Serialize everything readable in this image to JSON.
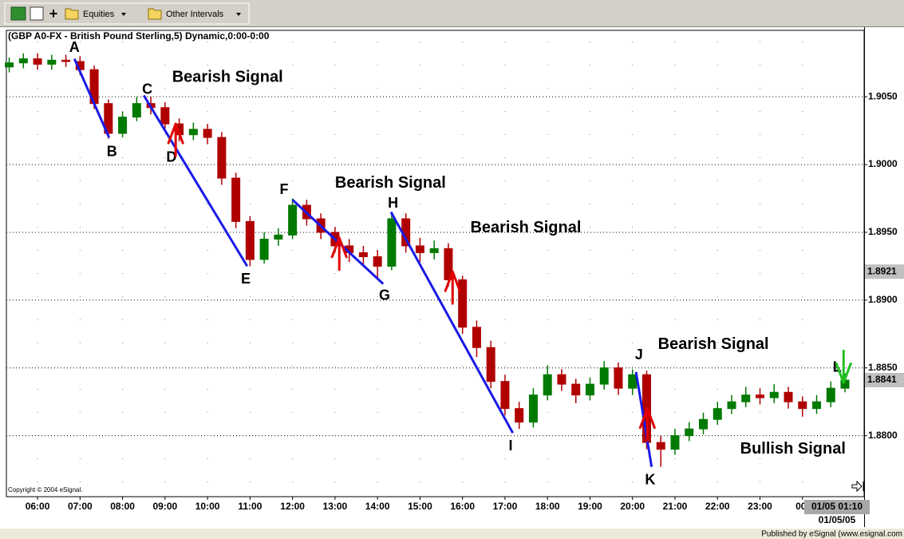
{
  "toolbar": {
    "items": [
      "Equities",
      "Other Intervals"
    ]
  },
  "footer": "Published by eSignal (www.esignal.com",
  "chart_data": {
    "type": "candlestick",
    "title": "(GBP A0-FX - British Pound Sterling,5) Dynamic,0:00-0:00",
    "copyright": "Copyright © 2004 eSignal.",
    "date_label": "01/05/05",
    "time_marker": "01/05 01:10",
    "grid": true,
    "up_color": "#007a00",
    "down_color": "#b00000",
    "xlim": [
      -44,
      1167
    ],
    "ylim": [
      1.8755,
      1.9099
    ],
    "xticks": [
      {
        "value": 0,
        "label": "06:00"
      },
      {
        "value": 60,
        "label": "07:00"
      },
      {
        "value": 120,
        "label": "08:00"
      },
      {
        "value": 180,
        "label": "09:00"
      },
      {
        "value": 240,
        "label": "10:00"
      },
      {
        "value": 300,
        "label": "11:00"
      },
      {
        "value": 360,
        "label": "12:00"
      },
      {
        "value": 420,
        "label": "13:00"
      },
      {
        "value": 480,
        "label": "14:00"
      },
      {
        "value": 540,
        "label": "15:00"
      },
      {
        "value": 600,
        "label": "16:00"
      },
      {
        "value": 660,
        "label": "17:00"
      },
      {
        "value": 720,
        "label": "18:00"
      },
      {
        "value": 780,
        "label": "19:00"
      },
      {
        "value": 840,
        "label": "20:00"
      },
      {
        "value": 900,
        "label": "21:00"
      },
      {
        "value": 960,
        "label": "22:00"
      },
      {
        "value": 1020,
        "label": "23:00"
      },
      {
        "value": 1080,
        "label": "00:"
      }
    ],
    "yticks": [
      {
        "value": 1.905,
        "label": "1.9050"
      },
      {
        "value": 1.9,
        "label": "1.9000"
      },
      {
        "value": 1.895,
        "label": "1.8950"
      },
      {
        "value": 1.89,
        "label": "1.8900"
      },
      {
        "value": 1.885,
        "label": "1.8850"
      },
      {
        "value": 1.88,
        "label": "1.8800"
      }
    ],
    "price_markers": [
      1.8921,
      1.8841
    ],
    "x": [
      -40,
      -20,
      0,
      20,
      40,
      60,
      80,
      100,
      120,
      140,
      160,
      180,
      200,
      220,
      240,
      260,
      280,
      300,
      320,
      340,
      360,
      380,
      400,
      420,
      440,
      460,
      480,
      500,
      520,
      540,
      560,
      580,
      600,
      620,
      640,
      660,
      680,
      700,
      720,
      740,
      760,
      780,
      800,
      820,
      840,
      860,
      880,
      900,
      920,
      940,
      960,
      980,
      1000,
      1020,
      1040,
      1060,
      1080,
      1100,
      1120,
      1140
    ],
    "open": [
      1.9072,
      1.9075,
      1.9078,
      1.9074,
      1.9077,
      1.9076,
      1.907,
      1.9045,
      1.9023,
      1.9035,
      1.9045,
      1.9042,
      1.903,
      1.9022,
      1.9026,
      1.902,
      1.899,
      1.8958,
      1.893,
      1.8945,
      1.8948,
      1.897,
      1.896,
      1.895,
      1.894,
      1.8935,
      1.8932,
      1.8925,
      1.896,
      1.894,
      1.8935,
      1.8938,
      1.8915,
      1.888,
      1.8865,
      1.884,
      1.882,
      1.881,
      1.883,
      1.8845,
      1.8838,
      1.883,
      1.8838,
      1.885,
      1.8835,
      1.8845,
      1.8795,
      1.879,
      1.88,
      1.8805,
      1.8812,
      1.882,
      1.8825,
      1.883,
      1.8828,
      1.8832,
      1.8825,
      1.882,
      1.8825,
      1.8835
    ],
    "high": [
      1.9079,
      1.9082,
      1.9082,
      1.9081,
      1.9081,
      1.908,
      1.9073,
      1.9048,
      1.9039,
      1.905,
      1.905,
      1.9046,
      1.9034,
      1.9031,
      1.903,
      1.9024,
      1.8994,
      1.8962,
      1.895,
      1.8953,
      1.8975,
      1.8974,
      1.8964,
      1.8954,
      1.8945,
      1.894,
      1.8937,
      1.8965,
      1.8964,
      1.8946,
      1.8944,
      1.8942,
      1.8918,
      1.8885,
      1.887,
      1.8845,
      1.8825,
      1.8835,
      1.8852,
      1.8849,
      1.8842,
      1.8843,
      1.8855,
      1.8854,
      1.8849,
      1.8848,
      1.88,
      1.8805,
      1.881,
      1.8817,
      1.8825,
      1.883,
      1.8836,
      1.8835,
      1.8838,
      1.8836,
      1.8829,
      1.883,
      1.884,
      1.8846
    ],
    "low": [
      1.9068,
      1.9071,
      1.907,
      1.907,
      1.9072,
      1.9066,
      1.9041,
      1.9019,
      1.902,
      1.9032,
      1.9037,
      1.9026,
      1.9017,
      1.9018,
      1.9015,
      1.8985,
      1.8953,
      1.8925,
      1.8927,
      1.894,
      1.8945,
      1.8955,
      1.8945,
      1.8935,
      1.8928,
      1.8926,
      1.8915,
      1.8922,
      1.8935,
      1.8928,
      1.893,
      1.891,
      1.8875,
      1.8858,
      1.8835,
      1.8815,
      1.8805,
      1.8806,
      1.8826,
      1.8833,
      1.8824,
      1.8826,
      1.8834,
      1.883,
      1.883,
      1.879,
      1.8777,
      1.8786,
      1.8796,
      1.8801,
      1.8808,
      1.8816,
      1.8821,
      1.8823,
      1.8824,
      1.882,
      1.8814,
      1.8816,
      1.8821,
      1.8832
    ],
    "close": [
      1.9075,
      1.9078,
      1.9074,
      1.9077,
      1.9076,
      1.907,
      1.9045,
      1.9023,
      1.9035,
      1.9045,
      1.9042,
      1.903,
      1.9022,
      1.9026,
      1.902,
      1.899,
      1.8958,
      1.893,
      1.8945,
      1.8948,
      1.897,
      1.896,
      1.895,
      1.894,
      1.8935,
      1.8932,
      1.8925,
      1.896,
      1.894,
      1.8935,
      1.8938,
      1.8915,
      1.888,
      1.8865,
      1.884,
      1.882,
      1.881,
      1.883,
      1.8845,
      1.8838,
      1.883,
      1.8838,
      1.885,
      1.8835,
      1.8845,
      1.8795,
      1.879,
      1.88,
      1.8805,
      1.8812,
      1.882,
      1.8825,
      1.883,
      1.8828,
      1.8832,
      1.8825,
      1.882,
      1.8825,
      1.8835,
      1.8841
    ],
    "trend_color": "#1a1ae6",
    "trend_lines": [
      {
        "x": [
          52,
          101
        ],
        "y": [
          1.9078,
          1.902
        ]
      },
      {
        "x": [
          150,
          296
        ],
        "y": [
          1.9051,
          1.8925
        ]
      },
      {
        "x": [
          360,
          488
        ],
        "y": [
          1.8974,
          1.8912
        ]
      },
      {
        "x": [
          499,
          671
        ],
        "y": [
          1.8965,
          1.8802
        ]
      },
      {
        "x": [
          845,
          867
        ],
        "y": [
          1.8847,
          1.8777
        ]
      }
    ],
    "labels": [
      {
        "text": "A",
        "x": 52,
        "y": 1.9086
      },
      {
        "text": "B",
        "x": 105,
        "y": 1.9009
      },
      {
        "text": "C",
        "x": 155,
        "y": 1.9055
      },
      {
        "text": "D",
        "x": 189,
        "y": 1.9005
      },
      {
        "text": "E",
        "x": 294,
        "y": 1.8915
      },
      {
        "text": "F",
        "x": 348,
        "y": 1.8981
      },
      {
        "text": "G",
        "x": 490,
        "y": 1.8903
      },
      {
        "text": "H",
        "x": 502,
        "y": 1.8971
      },
      {
        "text": "I",
        "x": 668,
        "y": 1.8792
      },
      {
        "text": "J",
        "x": 849,
        "y": 1.8859
      },
      {
        "text": "K",
        "x": 865,
        "y": 1.8767
      },
      {
        "text": "L",
        "x": 1129,
        "y": 1.885
      }
    ],
    "signals": [
      {
        "text": "Bearish Signal",
        "x": 190,
        "y": 1.9064,
        "arrow_x": 195,
        "arrow_y": 1.903,
        "direction": "down",
        "color": "#e00000"
      },
      {
        "text": "Bearish Signal",
        "x": 420,
        "y": 1.8986,
        "arrow_x": 426,
        "arrow_y": 1.8946,
        "direction": "down",
        "color": "#e00000"
      },
      {
        "text": "Bearish Signal",
        "x": 611,
        "y": 1.8953,
        "arrow_x": 586,
        "arrow_y": 1.8921,
        "direction": "down",
        "color": "#e00000"
      },
      {
        "text": "Bearish Signal",
        "x": 876,
        "y": 1.8867,
        "arrow_x": 861,
        "arrow_y": 1.882,
        "direction": "down",
        "color": "#e00000"
      },
      {
        "text": "Bullish Signal",
        "x": 992,
        "y": 1.879,
        "arrow_x": 1138,
        "arrow_y": 1.8839,
        "direction": "up",
        "color": "#22c022"
      }
    ]
  }
}
